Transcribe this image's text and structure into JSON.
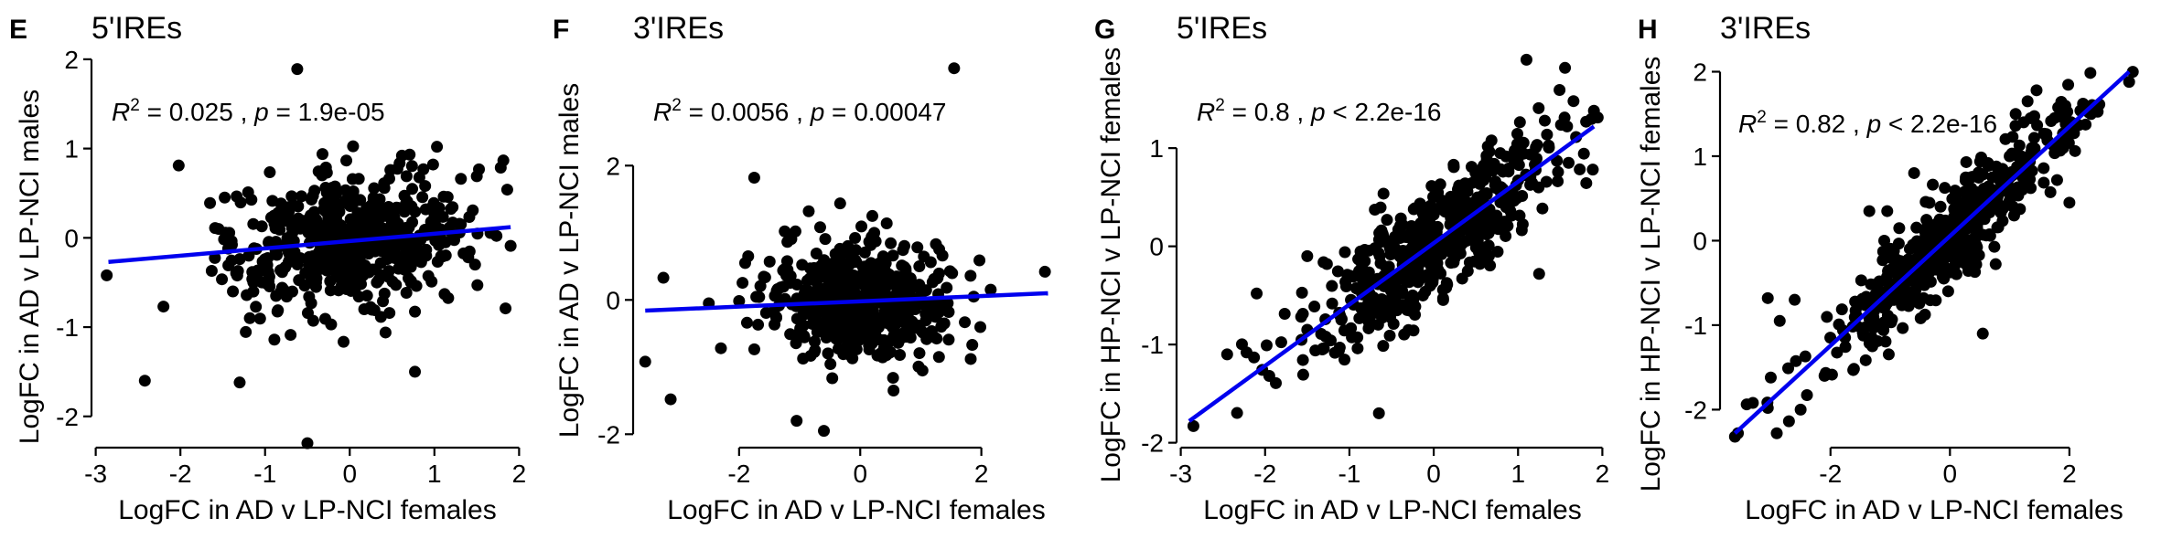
{
  "chart_data": [
    {
      "panel_letter": "E",
      "type": "scatter",
      "title": "5'IREs",
      "xlabel": "LogFC in AD v LP-NCI females",
      "ylabel": "LogFC in AD v LP-NCI males",
      "stat_r2": "0.025",
      "stat_p": "= 1.9e-05",
      "xlim": [
        -3.05,
        2.05
      ],
      "ylim": [
        -2.35,
        2.05
      ],
      "xticks": [
        -3,
        -2,
        -1,
        0,
        1,
        2
      ],
      "yticks": [
        -2,
        -1,
        0,
        1,
        2
      ],
      "point_color": "#000000",
      "line_color": "#0000ee",
      "fit_line": {
        "x": [
          -2.85,
          1.9
        ],
        "y": [
          -0.27,
          0.12
        ]
      },
      "points": [
        [
          -2.87,
          -0.42
        ],
        [
          -2.42,
          -1.6
        ],
        [
          -2.2,
          -0.77
        ],
        [
          -2.02,
          0.81
        ],
        [
          -1.55,
          0.1
        ],
        [
          -1.63,
          -0.37
        ],
        [
          -1.38,
          -0.6
        ],
        [
          -1.3,
          -1.62
        ],
        [
          -1.18,
          -0.9
        ],
        [
          -0.89,
          -1.14
        ],
        [
          -0.87,
          -0.65
        ],
        [
          -0.62,
          1.89
        ],
        [
          -0.5,
          -2.3
        ],
        [
          -0.22,
          -0.97
        ],
        [
          0.77,
          -1.5
        ],
        [
          1.03,
          1.02
        ],
        [
          1.86,
          0.54
        ],
        [
          1.9,
          -0.09
        ],
        [
          -0.27,
          0.73
        ],
        [
          0.48,
          0.76
        ],
        [
          -1.2,
          0.51
        ],
        [
          -1.65,
          0.39
        ],
        [
          1.12,
          -0.63
        ],
        [
          1.48,
          -0.3
        ],
        [
          0.32,
          -0.5
        ],
        [
          -0.3,
          -0.29
        ]
      ]
    },
    {
      "panel_letter": "F",
      "type": "scatter",
      "title": "3'IREs",
      "xlabel": "LogFC in AD v LP-NCI females",
      "ylabel": "LogFC in AD v LP-NCI males",
      "stat_r2": "0.0056",
      "stat_p": "= 0.00047",
      "xlim": [
        -3.75,
        3.35
      ],
      "ylim": [
        -2.2,
        3.65
      ],
      "xticks": [
        -2,
        0,
        2
      ],
      "yticks": [
        -2,
        0,
        2
      ],
      "point_color": "#000000",
      "line_color": "#0000ee",
      "fit_line": {
        "x": [
          -3.55,
          3.1
        ],
        "y": [
          -0.16,
          0.1
        ]
      },
      "points": [
        [
          -3.55,
          -0.92
        ],
        [
          -3.25,
          0.33
        ],
        [
          -3.13,
          -1.48
        ],
        [
          -2.3,
          -0.72
        ],
        [
          -1.85,
          0.65
        ],
        [
          -1.75,
          1.82
        ],
        [
          -1.05,
          -1.8
        ],
        [
          -0.6,
          -1.95
        ],
        [
          -0.85,
          1.32
        ],
        [
          0.2,
          1.25
        ],
        [
          0.55,
          -1.35
        ],
        [
          1.25,
          0.83
        ],
        [
          1.3,
          -0.85
        ],
        [
          1.55,
          3.45
        ],
        [
          1.85,
          -0.67
        ],
        [
          3.05,
          0.42
        ],
        [
          -0.3,
          -0.75
        ],
        [
          0.6,
          0.35
        ],
        [
          -1.2,
          0.45
        ],
        [
          -2.5,
          -0.05
        ],
        [
          -1.9,
          0.55
        ],
        [
          0.95,
          -0.38
        ]
      ]
    },
    {
      "panel_letter": "G",
      "type": "scatter",
      "title": "5'IREs",
      "xlabel": "LogFC in AD v LP-NCI females",
      "ylabel": "LogFC in HP-NCI v LP-NCI females",
      "stat_r2": "0.8",
      "stat_p": "< 2.2e-16",
      "xlim": [
        -3.05,
        2.05
      ],
      "ylim": [
        -2.05,
        1.95
      ],
      "xticks": [
        -3,
        -2,
        -1,
        0,
        1,
        2
      ],
      "yticks": [
        -2,
        -1,
        0,
        1
      ],
      "point_color": "#000000",
      "line_color": "#0000ee",
      "fit_line": {
        "x": [
          -2.9,
          1.9
        ],
        "y": [
          -1.78,
          1.22
        ]
      },
      "points": [
        [
          -2.85,
          -1.83
        ],
        [
          -2.45,
          -1.1
        ],
        [
          -2.22,
          -1.08
        ],
        [
          -2.1,
          -0.48
        ],
        [
          -1.95,
          -1.32
        ],
        [
          -1.5,
          -0.85
        ],
        [
          -1.5,
          -0.1
        ],
        [
          -0.65,
          -1.7
        ],
        [
          -0.75,
          -0.35
        ],
        [
          -0.25,
          -0.5
        ],
        [
          0.2,
          0.0
        ],
        [
          1.1,
          1.9
        ],
        [
          1.25,
          -0.28
        ],
        [
          1.6,
          0.85
        ],
        [
          1.9,
          1.38
        ],
        [
          0.8,
          0.6
        ],
        [
          1.0,
          0.9
        ],
        [
          -0.6,
          -0.55
        ],
        [
          0.5,
          0.2
        ]
      ]
    },
    {
      "panel_letter": "H",
      "type": "scatter",
      "title": "3'IREs",
      "xlabel": "LogFC in AD v LP-NCI females",
      "ylabel": "LogFC in HP-NCI v LP-NCI females",
      "stat_r2": "0.82",
      "stat_p": "< 2.2e-16",
      "xlim": [
        -3.85,
        3.35
      ],
      "ylim": [
        -2.45,
        2.2
      ],
      "xticks": [
        -2,
        0,
        2
      ],
      "yticks": [
        -2,
        -1,
        0,
        1,
        2
      ],
      "point_color": "#000000",
      "line_color": "#0000ee",
      "fit_line": {
        "x": [
          -3.6,
          3.0
        ],
        "y": [
          -2.28,
          2.0
        ]
      },
      "points": [
        [
          -3.6,
          -2.32
        ],
        [
          -3.55,
          -2.28
        ],
        [
          -3.3,
          -1.92
        ],
        [
          -3.05,
          -1.98
        ],
        [
          -3.0,
          -1.62
        ],
        [
          -2.9,
          -2.28
        ],
        [
          -3.05,
          -0.68
        ],
        [
          -2.85,
          -0.95
        ],
        [
          -2.6,
          -0.7
        ],
        [
          -2.5,
          -2.0
        ],
        [
          -2.1,
          -1.6
        ],
        [
          -1.4,
          -1.02
        ],
        [
          -1.3,
          -1.25
        ],
        [
          -1.1,
          0.0
        ],
        [
          -1.05,
          0.35
        ],
        [
          -1.35,
          0.35
        ],
        [
          -0.9,
          -0.35
        ],
        [
          -0.6,
          0.8
        ],
        [
          0.35,
          0.75
        ],
        [
          0.55,
          -1.1
        ],
        [
          1.1,
          1.5
        ],
        [
          1.3,
          1.65
        ],
        [
          1.45,
          1.78
        ],
        [
          1.35,
          1.45
        ],
        [
          1.85,
          1.1
        ],
        [
          2.0,
          0.45
        ],
        [
          3.0,
          1.88
        ],
        [
          0.8,
          0.45
        ],
        [
          1.0,
          1.0
        ]
      ]
    }
  ]
}
